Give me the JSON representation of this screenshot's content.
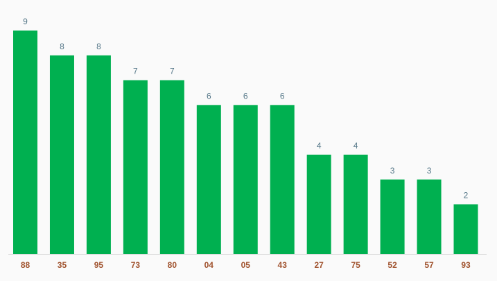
{
  "chart_data": {
    "type": "bar",
    "categories": [
      "88",
      "35",
      "95",
      "73",
      "80",
      "04",
      "05",
      "43",
      "27",
      "75",
      "52",
      "57",
      "93"
    ],
    "values": [
      9,
      8,
      8,
      7,
      7,
      6,
      6,
      6,
      4,
      4,
      3,
      3,
      2
    ],
    "color": "#00b050"
  }
}
